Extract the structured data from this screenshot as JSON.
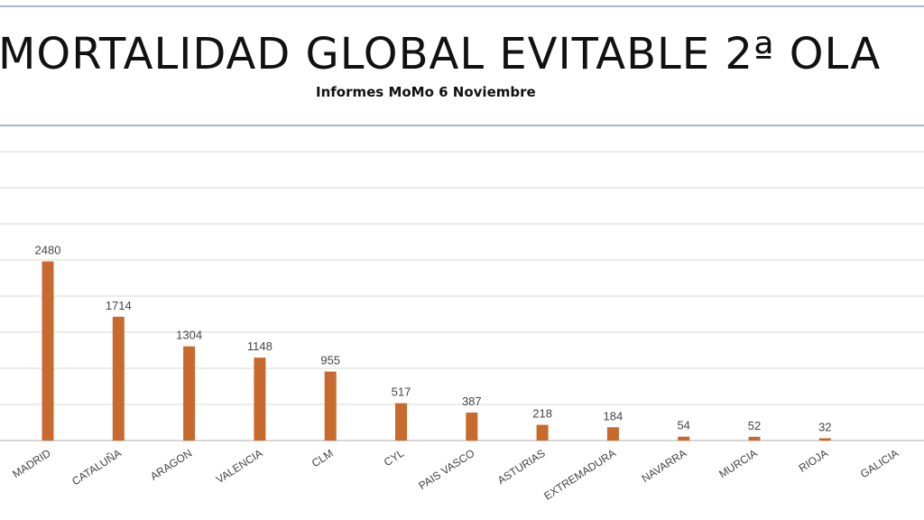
{
  "header": {
    "title": "MORTALIDAD GLOBAL EVITABLE 2ª OLA",
    "subtitle": "Informes MoMo 6 Noviembre"
  },
  "chart_data": {
    "type": "bar",
    "title": "MORTALIDAD GLOBAL EVITABLE 2ª OLA",
    "subtitle": "Informes MoMo 6 Noviembre",
    "categories": [
      "MADRID",
      "CATALUÑA",
      "ARAGON",
      "VALENCIA",
      "CLM",
      "CYL",
      "PAIS VASCO",
      "ASTURIAS",
      "EXTREMADURA",
      "NAVARRA",
      "MURCIA",
      "RIOJA",
      "GALICIA"
    ],
    "values": [
      2480,
      1714,
      1304,
      1148,
      955,
      517,
      387,
      218,
      184,
      54,
      52,
      32,
      null
    ],
    "data_labels": [
      "2480",
      "1714",
      "1304",
      "1148",
      "955",
      "517",
      "387",
      "218",
      "184",
      "54",
      "52",
      "32",
      ""
    ],
    "ylim": [
      0,
      4000
    ],
    "grid": true,
    "bar_color": "#c8692d",
    "gridline_color": "#dadada",
    "axis_color": "#c9c9c9",
    "label_color": "#444444"
  }
}
